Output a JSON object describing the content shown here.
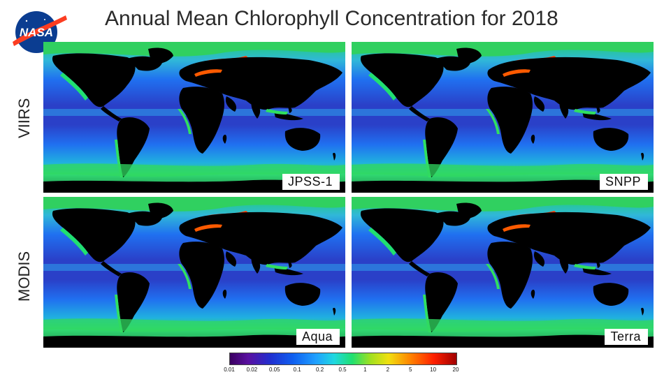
{
  "header": {
    "title": "Annual Mean Chlorophyll Concentration for 2018",
    "logo_text": "NASA"
  },
  "rows": {
    "viirs_label": "VIIRS",
    "modis_label": "MODIS"
  },
  "panels": [
    {
      "label": "JPSS-1",
      "sensor": "VIIRS"
    },
    {
      "label": "SNPP",
      "sensor": "VIIRS"
    },
    {
      "label": "Aqua",
      "sensor": "MODIS"
    },
    {
      "label": "Terra",
      "sensor": "MODIS"
    }
  ],
  "colorbar": {
    "ticks": [
      "0.01",
      "0.02",
      "0.05",
      "0.1",
      "0.2",
      "0.5",
      "1",
      "2",
      "5",
      "10",
      "20"
    ]
  },
  "colors": {
    "land": "#000000",
    "open_ocean": "#1e5fe0",
    "gyre": "#2a2ab8",
    "coastal": "#30e060",
    "high": "#ff2a00",
    "logo_blue": "#0b3d91",
    "logo_red": "#fc3d21"
  }
}
